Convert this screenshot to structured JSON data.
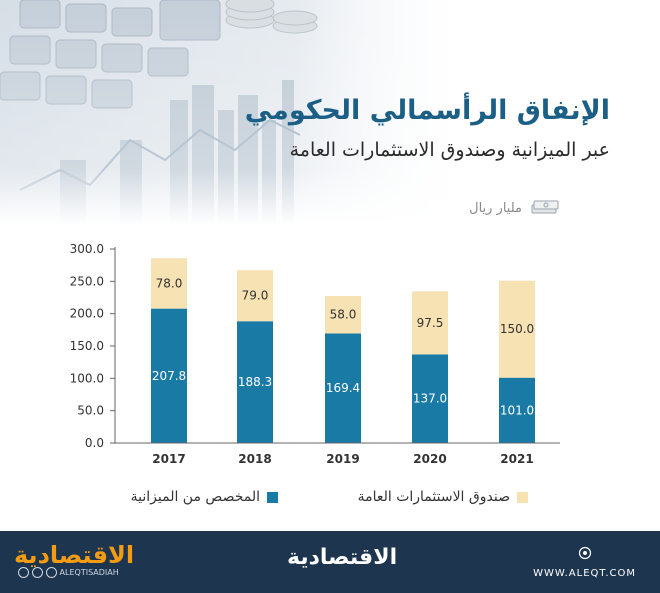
{
  "header": {
    "title": "الإنفاق الرأسمالي الحكومي",
    "subtitle": "عبر الميزانية وصندوق الاستثمارات العامة",
    "unit": "مليار ريال",
    "unit_icon": "money-stack-icon"
  },
  "chart_data": {
    "type": "bar",
    "stacked": true,
    "categories": [
      "2017",
      "2018",
      "2019",
      "2020",
      "2021"
    ],
    "series": [
      {
        "name": "المخصص من الميزانية",
        "values": [
          207.8,
          188.3,
          169.4,
          137.0,
          101.0
        ],
        "color": "#1a7aa6",
        "label_color": "#ffffff"
      },
      {
        "name": "صندوق الاستثمارات العامة",
        "values": [
          78.0,
          79.0,
          58.0,
          97.5,
          150.0
        ],
        "color": "#f6e2b3",
        "label_color": "#333333"
      }
    ],
    "y_ticks": [
      "0.0",
      "50.0",
      "100.0",
      "150.0",
      "200.0",
      "250.0",
      "300.0"
    ],
    "ylim": [
      0,
      300
    ],
    "grid": false,
    "legend_position": "bottom"
  },
  "footer": {
    "brand_left": "الاقتصادية",
    "social_handle": "ALEQTISADIAH",
    "brand_center": "الاقتصادية",
    "website": "WWW.ALEQT.COM",
    "background": "#1e3550",
    "accent": "#f39c12"
  }
}
